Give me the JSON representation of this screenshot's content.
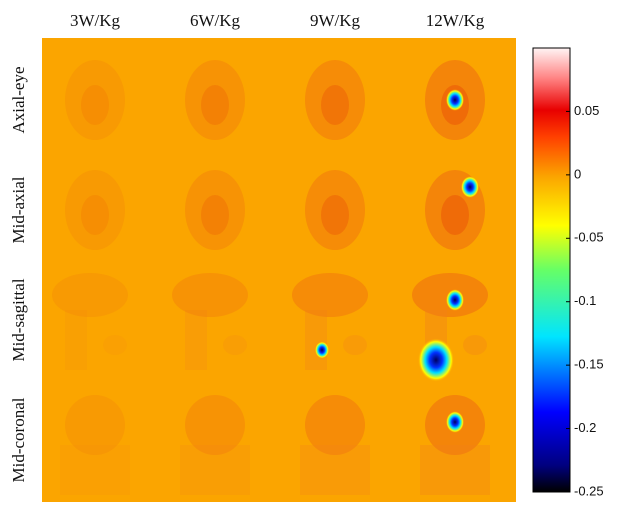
{
  "columns": [
    "3W/Kg",
    "6W/Kg",
    "9W/Kg",
    "12W/Kg"
  ],
  "rows": [
    "Axial-eye",
    "Mid-axial",
    "Mid-sagittal",
    "Mid-coronal"
  ],
  "colorbar": {
    "lim": [
      -0.25,
      0.1
    ],
    "ticks": [
      0.05,
      0,
      -0.05,
      -0.1,
      -0.15,
      -0.2,
      -0.25
    ]
  }
}
